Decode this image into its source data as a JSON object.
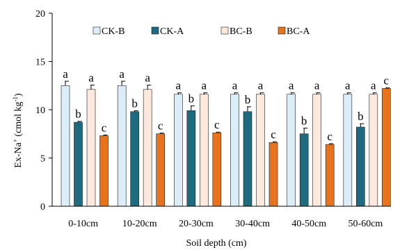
{
  "chart_data": {
    "type": "bar",
    "xlabel": "Soil depth (cm)",
    "ylabel": "Ex-Na+ (cmol kg-1)",
    "ylabel_parts": {
      "base": "Ex-Na",
      "sup1": "+",
      "unit": " (cmol kg",
      "sup2": "-1",
      "close": ")"
    },
    "ylim": [
      0,
      20
    ],
    "yticks": [
      "0",
      "5",
      "10",
      "15",
      "20"
    ],
    "grid": false,
    "legend_placement": "top",
    "categories": [
      "0-10cm",
      "10-20cm",
      "20-30cm",
      "30-40cm",
      "40-50cm",
      "50-60cm"
    ],
    "series": [
      {
        "name": "CK-B",
        "color": "#dbeef7",
        "values": [
          12.5,
          12.5,
          11.6,
          11.6,
          11.6,
          11.6
        ],
        "errors": [
          0.45,
          0.45,
          0.15,
          0.15,
          0.15,
          0.15
        ],
        "labels": [
          "a",
          "a",
          "a",
          "a",
          "a",
          "a"
        ]
      },
      {
        "name": "CK-A",
        "color": "#1e6b80",
        "values": [
          8.7,
          9.8,
          9.9,
          9.8,
          7.5,
          8.2
        ],
        "errors": [
          0.1,
          0.1,
          0.5,
          0.5,
          0.6,
          0.35
        ],
        "labels": [
          "b",
          "b",
          "b",
          "b",
          "b",
          "b"
        ]
      },
      {
        "name": "BC-B",
        "color": "#fce8dc",
        "values": [
          12.1,
          12.1,
          11.6,
          11.6,
          11.6,
          11.6
        ],
        "errors": [
          0.45,
          0.45,
          0.15,
          0.15,
          0.15,
          0.15
        ],
        "labels": [
          "a",
          "a",
          "a",
          "a",
          "a",
          "a"
        ]
      },
      {
        "name": "BC-A",
        "color": "#e8731e",
        "values": [
          7.3,
          7.5,
          7.6,
          6.6,
          6.4,
          12.2
        ],
        "errors": [
          0.08,
          0.08,
          0.08,
          0.08,
          0.08,
          0.08
        ],
        "labels": [
          "c",
          "c",
          "c",
          "c",
          "c",
          "c"
        ]
      }
    ]
  }
}
